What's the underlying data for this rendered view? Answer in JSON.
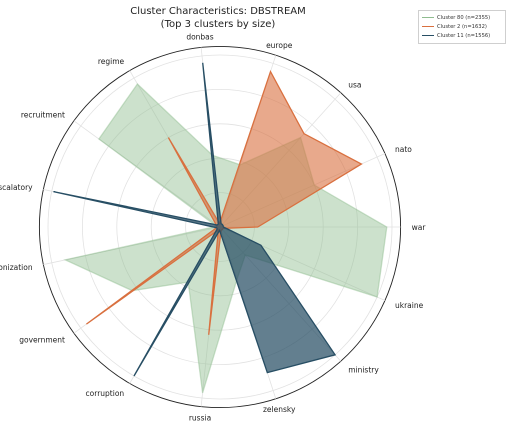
{
  "chart_data": {
    "type": "radar",
    "title": "Cluster Characteristics: DBSTREAM",
    "subtitle": "(Top 3 clusters by size)",
    "axes": [
      "war",
      "nato",
      "usa",
      "europe",
      "donbas",
      "regime",
      "recruitment",
      "escalatory",
      "weaponization",
      "government",
      "corruption",
      "russia",
      "zelensky",
      "ministry",
      "ukraine"
    ],
    "rmax": 1.0,
    "grid_levels": [
      0.2,
      0.4,
      0.6,
      0.8,
      1.0
    ],
    "legend_position": "top-right",
    "series": [
      {
        "name": "Cluster 80 (n=2355)",
        "color": "#8fbc8f",
        "fill_opacity": 0.45,
        "line_opacity": 0.45,
        "values": [
          0.97,
          0.6,
          0.7,
          0.38,
          0.42,
          0.96,
          0.87,
          0.02,
          0.92,
          0.63,
          0.37,
          0.97,
          0.32,
          0.22,
          1.0
        ]
      },
      {
        "name": "Cluster 2 (n=1632)",
        "color": "#d9703f",
        "fill_opacity": 0.6,
        "line_opacity": 1.0,
        "values": [
          0.22,
          0.9,
          0.73,
          0.95,
          0.02,
          0.6,
          0.03,
          0.02,
          0.02,
          0.96,
          0.02,
          0.63,
          0.02,
          0.02,
          0.02
        ]
      },
      {
        "name": "Cluster 11 (n=1556)",
        "color": "#274e64",
        "fill_opacity": 0.72,
        "line_opacity": 1.0,
        "values": [
          0.02,
          0.02,
          0.02,
          0.02,
          0.96,
          0.02,
          0.02,
          0.99,
          0.02,
          0.02,
          1.0,
          0.02,
          0.89,
          1.0,
          0.26
        ]
      }
    ]
  }
}
